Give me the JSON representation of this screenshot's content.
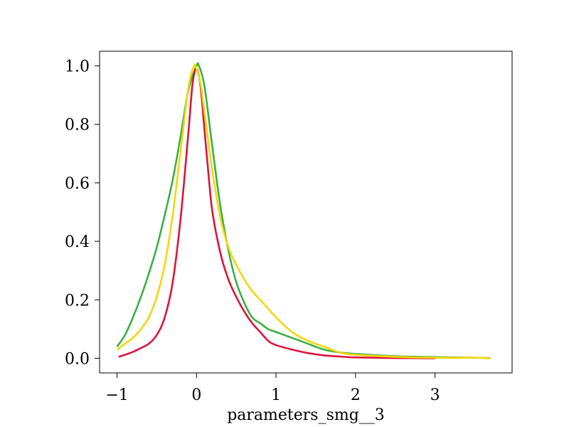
{
  "chart_data": {
    "type": "line",
    "title": "",
    "xlabel": "parameters_smg__3",
    "ylabel": "",
    "xlim": [
      -1.22,
      3.97
    ],
    "ylim": [
      -0.05,
      1.05
    ],
    "xticks": [
      -1,
      0,
      1,
      2,
      3
    ],
    "xtick_labels": [
      "−1",
      "0",
      "1",
      "2",
      "3"
    ],
    "yticks": [
      0.0,
      0.2,
      0.4,
      0.6,
      0.8,
      1.0
    ],
    "ytick_labels": [
      "0.0",
      "0.2",
      "0.4",
      "0.6",
      "0.8",
      "1.0"
    ],
    "grid": false,
    "legend": "none",
    "series": [
      {
        "color": "#3cb043",
        "x": [
          -1.0,
          -0.9,
          -0.8,
          -0.7,
          -0.6,
          -0.5,
          -0.4,
          -0.3,
          -0.2,
          -0.1,
          0.0,
          0.03,
          0.1,
          0.2,
          0.3,
          0.4,
          0.5,
          0.6,
          0.7,
          0.8,
          0.9,
          1.0,
          1.2,
          1.4,
          1.6,
          1.8,
          2.0,
          2.5,
          3.0,
          3.5,
          3.7
        ],
        "y": [
          0.04,
          0.08,
          0.14,
          0.21,
          0.29,
          0.38,
          0.49,
          0.61,
          0.76,
          0.92,
          1.0,
          1.0,
          0.93,
          0.72,
          0.52,
          0.37,
          0.26,
          0.19,
          0.14,
          0.12,
          0.1,
          0.09,
          0.07,
          0.05,
          0.03,
          0.02,
          0.015,
          0.007,
          0.004,
          0.002,
          0.001
        ]
      },
      {
        "color": "#dc143c",
        "x": [
          -0.98,
          -0.9,
          -0.8,
          -0.7,
          -0.6,
          -0.5,
          -0.4,
          -0.3,
          -0.2,
          -0.1,
          -0.05,
          0.0,
          0.05,
          0.1,
          0.15,
          0.2,
          0.3,
          0.4,
          0.5,
          0.6,
          0.7,
          0.8,
          0.9,
          1.0,
          1.2,
          1.4,
          1.6,
          1.8,
          2.0,
          2.5,
          3.0
        ],
        "y": [
          0.005,
          0.012,
          0.022,
          0.035,
          0.05,
          0.08,
          0.14,
          0.26,
          0.48,
          0.78,
          0.94,
          0.99,
          0.93,
          0.78,
          0.63,
          0.5,
          0.36,
          0.27,
          0.21,
          0.16,
          0.12,
          0.09,
          0.06,
          0.045,
          0.03,
          0.018,
          0.01,
          0.006,
          0.003,
          0.001,
          0.0
        ]
      },
      {
        "color": "#f5d60a",
        "x": [
          -1.0,
          -0.9,
          -0.8,
          -0.7,
          -0.6,
          -0.5,
          -0.4,
          -0.3,
          -0.2,
          -0.1,
          -0.03,
          0.0,
          0.05,
          0.1,
          0.2,
          0.3,
          0.4,
          0.5,
          0.6,
          0.7,
          0.8,
          0.9,
          1.0,
          1.2,
          1.4,
          1.6,
          1.8,
          2.0,
          2.5,
          3.0,
          3.5,
          3.7
        ],
        "y": [
          0.03,
          0.05,
          0.07,
          0.1,
          0.14,
          0.21,
          0.32,
          0.49,
          0.71,
          0.93,
          1.0,
          0.99,
          0.94,
          0.84,
          0.64,
          0.48,
          0.38,
          0.32,
          0.27,
          0.23,
          0.2,
          0.17,
          0.14,
          0.09,
          0.06,
          0.04,
          0.02,
          0.012,
          0.005,
          0.002,
          0.002,
          0.0
        ]
      }
    ]
  }
}
